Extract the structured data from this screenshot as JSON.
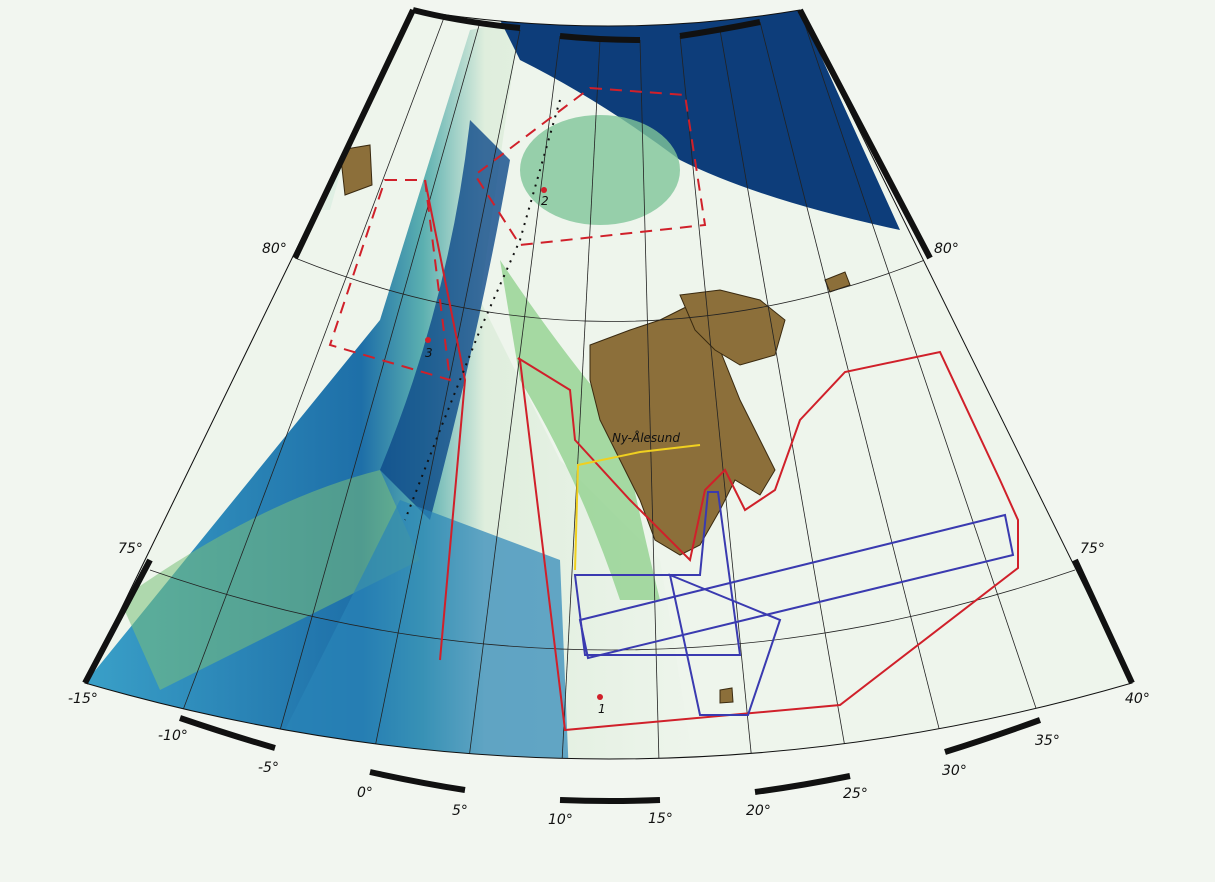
{
  "map": {
    "projection": "Lambert conic",
    "lat_labels": [
      "80°",
      "80°",
      "75°",
      "75°"
    ],
    "lon_labels": [
      "-15°",
      "-10°",
      "-5°",
      "0°",
      "5°",
      "10°",
      "15°",
      "20°",
      "25°",
      "30°",
      "35°",
      "40°"
    ],
    "places": {
      "ny_alesund": "Ny-Ålesund"
    },
    "sites": [
      "1",
      "2",
      "3"
    ],
    "colors": {
      "deep_ocean": "#0d3d7a",
      "mid_ocean": "#2e8fbf",
      "shelf": "#7ac07a",
      "shallow": "#e8f2e4",
      "land": "#8c6f3a",
      "survey_red": "#d0202a",
      "survey_blue": "#3a3ab0",
      "track_yellow": "#f0d020",
      "track_black": "#111111"
    }
  }
}
